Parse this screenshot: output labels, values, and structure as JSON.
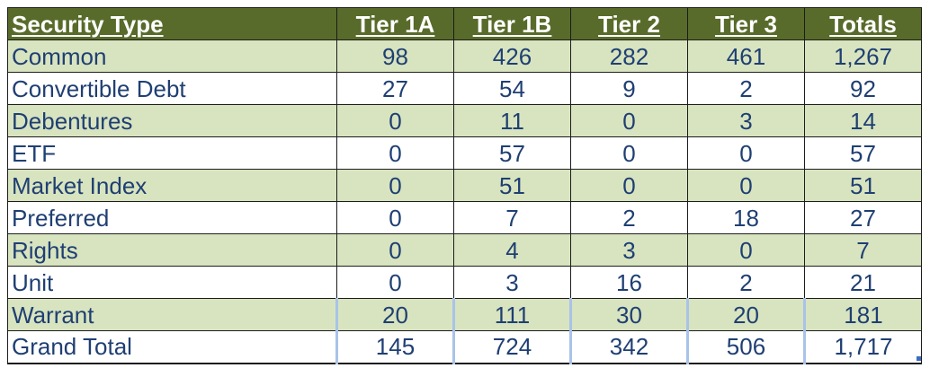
{
  "table": {
    "headers": [
      "Security Type",
      "Tier 1A",
      "Tier 1B",
      "Tier 2",
      "Tier 3",
      "Totals"
    ],
    "rows": [
      [
        "Common",
        "98",
        "426",
        "282",
        "461",
        "1,267"
      ],
      [
        "Convertible Debt",
        "27",
        "54",
        "9",
        "2",
        "92"
      ],
      [
        "Debentures",
        "0",
        "11",
        "0",
        "3",
        "14"
      ],
      [
        "ETF",
        "0",
        "57",
        "0",
        "0",
        "57"
      ],
      [
        "Market Index",
        "0",
        "51",
        "0",
        "0",
        "51"
      ],
      [
        "Preferred",
        "0",
        "7",
        "2",
        "18",
        "27"
      ],
      [
        "Rights",
        "0",
        "4",
        "3",
        "0",
        "7"
      ],
      [
        "Unit",
        "0",
        "3",
        "16",
        "2",
        "21"
      ],
      [
        "Warrant",
        "20",
        "111",
        "30",
        "20",
        "181"
      ],
      [
        "Grand Total",
        "145",
        "724",
        "342",
        "506",
        "1,717"
      ]
    ]
  },
  "colors": {
    "header_bg": "#586b2a",
    "header_text": "#ffffff",
    "shaded_row": "#d8e4bf",
    "body_text": "#1f3f73",
    "separator_blue": "#a9c3e8"
  }
}
